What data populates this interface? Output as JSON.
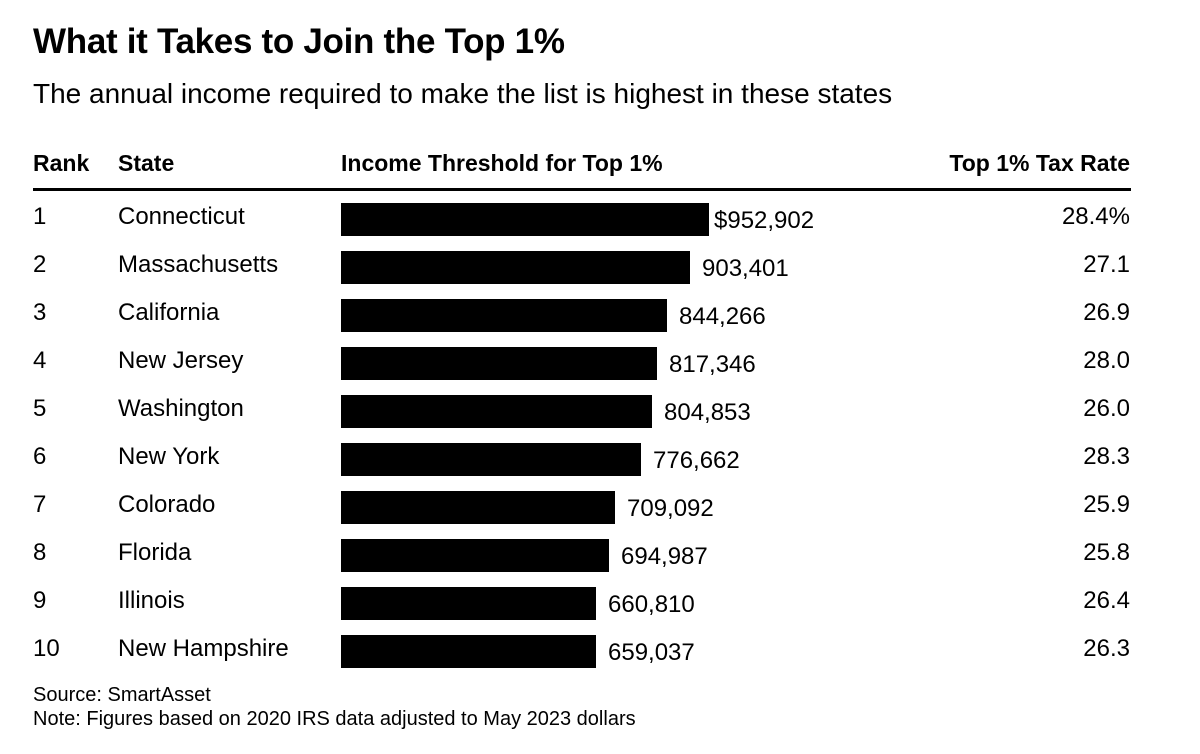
{
  "chart_data": {
    "type": "bar",
    "title": "What it Takes to Join the Top 1%",
    "subtitle": "The annual income required to make the list is highest in these states",
    "columns": {
      "rank": "Rank",
      "state": "State",
      "income": "Income Threshold for Top 1%",
      "tax": "Top 1% Tax Rate"
    },
    "rows": [
      {
        "rank": "1",
        "state": "Connecticut",
        "income": 952902,
        "income_label": "$952,902",
        "tax": "28.4%"
      },
      {
        "rank": "2",
        "state": "Massachusetts",
        "income": 903401,
        "income_label": "903,401",
        "tax": "27.1"
      },
      {
        "rank": "3",
        "state": "California",
        "income": 844266,
        "income_label": "844,266",
        "tax": "26.9"
      },
      {
        "rank": "4",
        "state": "New Jersey",
        "income": 817346,
        "income_label": "817,346",
        "tax": "28.0"
      },
      {
        "rank": "5",
        "state": "Washington",
        "income": 804853,
        "income_label": "804,853",
        "tax": "26.0"
      },
      {
        "rank": "6",
        "state": "New York",
        "income": 776662,
        "income_label": "776,662",
        "tax": "28.3"
      },
      {
        "rank": "7",
        "state": "Colorado",
        "income": 709092,
        "income_label": "709,092",
        "tax": "25.9"
      },
      {
        "rank": "8",
        "state": "Florida",
        "income": 694987,
        "income_label": "694,987",
        "tax": "25.8"
      },
      {
        "rank": "9",
        "state": "Illinois",
        "income": 660810,
        "income_label": "660,810",
        "tax": "26.4"
      },
      {
        "rank": "10",
        "state": "New Hampshire",
        "income": 659037,
        "income_label": "659,037",
        "tax": "26.3"
      }
    ],
    "bar_color": "#000000",
    "source": "Source: SmartAsset",
    "note": "Note: Figures based on 2020 IRS data adjusted to May 2023 dollars"
  }
}
